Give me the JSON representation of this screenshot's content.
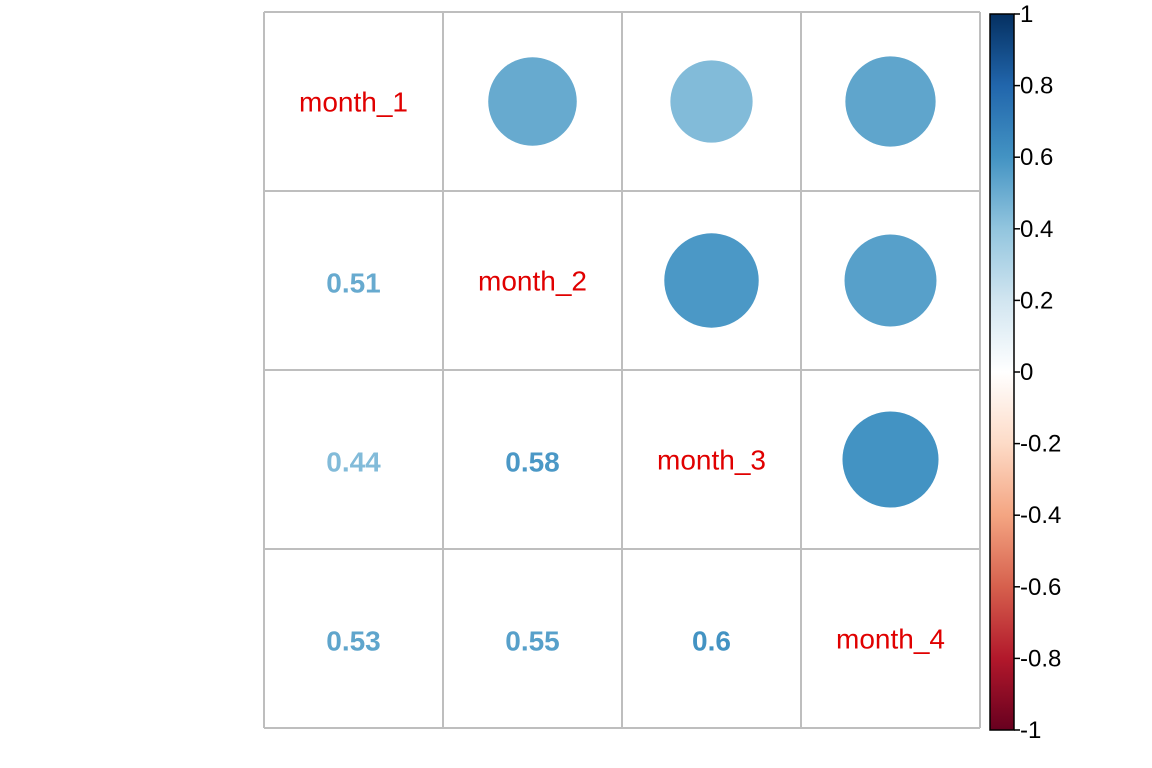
{
  "chart_data": {
    "type": "heatmap",
    "variables": [
      "month_1",
      "month_2",
      "month_3",
      "month_4"
    ],
    "matrix": [
      [
        1,
        0.51,
        0.44,
        0.53
      ],
      [
        0.51,
        1,
        0.58,
        0.55
      ],
      [
        0.44,
        0.58,
        1,
        0.6
      ],
      [
        0.53,
        0.55,
        0.6,
        1
      ]
    ],
    "lower_labels": [
      {
        "row": 1,
        "col": 0,
        "text": "0.51"
      },
      {
        "row": 2,
        "col": 0,
        "text": "0.44"
      },
      {
        "row": 2,
        "col": 1,
        "text": "0.58"
      },
      {
        "row": 3,
        "col": 0,
        "text": "0.53"
      },
      {
        "row": 3,
        "col": 1,
        "text": "0.55"
      },
      {
        "row": 3,
        "col": 2,
        "text": "0.6"
      }
    ],
    "upper_glyph": "circle",
    "lower_glyph": "number",
    "diagonal": "variable-name",
    "colorbar": {
      "range": [
        -1,
        1
      ],
      "ticks": [
        "1",
        "0.8",
        "0.6",
        "0.4",
        "0.2",
        "0",
        "-0.2",
        "-0.4",
        "-0.6",
        "-0.8",
        "-1"
      ]
    },
    "grid": true,
    "legend_placement": "right",
    "colors": {
      "scale": [
        "#67001F",
        "#B2182B",
        "#D6604D",
        "#F4A582",
        "#FDDBC7",
        "#FFFFFF",
        "#D1E5F0",
        "#92C5DE",
        "#4393C3",
        "#2166AC",
        "#053061"
      ],
      "diagonal_label": "#E00000",
      "grid": "#BEBEBE"
    }
  }
}
